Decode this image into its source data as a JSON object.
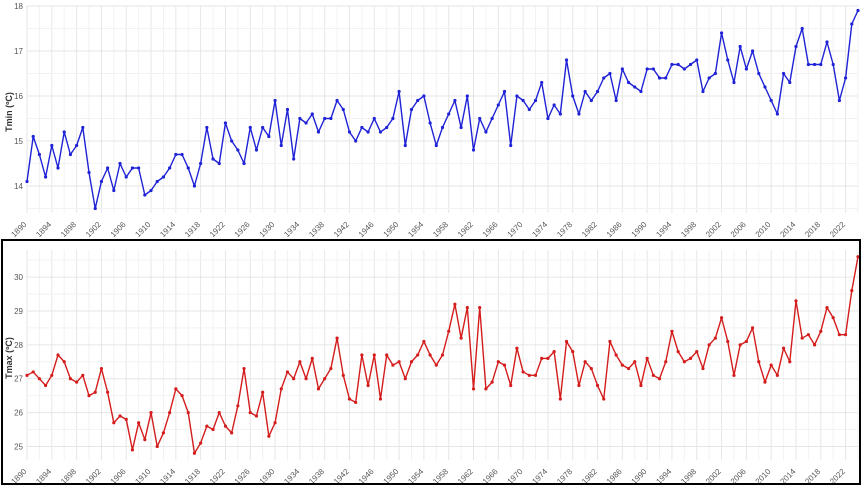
{
  "chart_data": [
    {
      "type": "line",
      "title": "",
      "xlabel": "",
      "ylabel": "Tmin (ºC)",
      "ylim": [
        13.4,
        18.0
      ],
      "xlim": [
        1890,
        2024
      ],
      "grid": true,
      "color": "#1f22d6",
      "x_ticks": [
        1890,
        1894,
        1898,
        1902,
        1906,
        1910,
        1914,
        1918,
        1922,
        1926,
        1930,
        1934,
        1938,
        1942,
        1946,
        1950,
        1954,
        1958,
        1962,
        1966,
        1970,
        1974,
        1978,
        1982,
        1986,
        1990,
        1994,
        1998,
        2002,
        2006,
        2010,
        2014,
        2018,
        2022
      ],
      "y_ticks": [
        14,
        15,
        16,
        17,
        18
      ],
      "series": [
        {
          "x_start": 1890,
          "x_step": 1,
          "values": [
            14.1,
            15.1,
            14.7,
            14.2,
            14.9,
            14.4,
            15.2,
            14.7,
            14.9,
            15.3,
            14.3,
            13.5,
            14.1,
            14.4,
            13.9,
            14.5,
            14.2,
            14.4,
            14.4,
            13.8,
            13.9,
            14.1,
            14.2,
            14.4,
            14.7,
            14.7,
            14.4,
            14.0,
            14.5,
            15.3,
            14.6,
            14.5,
            15.4,
            15.0,
            14.8,
            14.5,
            15.3,
            14.8,
            15.3,
            15.1,
            15.9,
            14.9,
            15.7,
            14.6,
            15.5,
            15.4,
            15.6,
            15.2,
            15.5,
            15.5,
            15.9,
            15.7,
            15.2,
            15.0,
            15.3,
            15.2,
            15.5,
            15.2,
            15.3,
            15.5,
            16.1,
            14.9,
            15.7,
            15.9,
            16.0,
            15.4,
            14.9,
            15.3,
            15.6,
            15.9,
            15.3,
            16.0,
            14.8,
            15.5,
            15.2,
            15.5,
            15.8,
            16.1,
            14.9,
            16.0,
            15.9,
            15.7,
            15.9,
            16.3,
            15.5,
            15.8,
            15.6,
            16.8,
            16.0,
            15.6,
            16.1,
            15.9,
            16.1,
            16.4,
            16.5,
            15.9,
            16.6,
            16.3,
            16.2,
            16.1,
            16.6,
            16.6,
            16.4,
            16.4,
            16.7,
            16.7,
            16.6,
            16.7,
            16.8,
            16.1,
            16.4,
            16.5,
            17.4,
            16.8,
            16.3,
            17.1,
            16.6,
            17.0,
            16.5,
            16.2,
            15.9,
            15.6,
            16.5,
            16.3,
            17.1,
            17.5,
            16.7,
            16.7,
            16.7,
            17.2,
            16.7,
            15.9,
            16.4,
            17.6,
            17.9
          ]
        }
      ]
    },
    {
      "type": "line",
      "title": "",
      "xlabel": "",
      "ylabel": "Tmax (ºC)",
      "ylim": [
        24.6,
        30.8
      ],
      "xlim": [
        1890,
        2024
      ],
      "grid": true,
      "color": "#d41c1c",
      "x_ticks": [
        1890,
        1894,
        1898,
        1902,
        1906,
        1910,
        1914,
        1918,
        1922,
        1926,
        1930,
        1934,
        1938,
        1942,
        1946,
        1950,
        1954,
        1958,
        1962,
        1966,
        1970,
        1974,
        1978,
        1982,
        1986,
        1990,
        1994,
        1998,
        2002,
        2006,
        2010,
        2014,
        2018,
        2022
      ],
      "y_ticks": [
        25,
        26,
        27,
        28,
        29,
        30
      ],
      "series": [
        {
          "x_start": 1890,
          "x_step": 1,
          "values": [
            27.1,
            27.2,
            27.0,
            26.8,
            27.1,
            27.7,
            27.5,
            27.0,
            26.9,
            27.1,
            26.5,
            26.6,
            27.3,
            26.6,
            25.7,
            25.9,
            25.8,
            24.9,
            25.7,
            25.2,
            26.0,
            25.0,
            25.4,
            26.0,
            26.7,
            26.5,
            26.0,
            24.8,
            25.1,
            25.6,
            25.5,
            26.0,
            25.6,
            25.4,
            26.2,
            27.3,
            26.0,
            25.9,
            26.6,
            25.3,
            25.7,
            26.7,
            27.2,
            27.0,
            27.5,
            27.0,
            27.6,
            26.7,
            27.0,
            27.3,
            28.2,
            27.1,
            26.4,
            26.3,
            27.7,
            26.8,
            27.7,
            26.4,
            27.7,
            27.4,
            27.5,
            27.0,
            27.5,
            27.7,
            28.1,
            27.7,
            27.4,
            27.7,
            28.4,
            29.2,
            28.2,
            29.1,
            26.7,
            29.1,
            26.7,
            26.9,
            27.5,
            27.4,
            26.8,
            27.9,
            27.2,
            27.1,
            27.1,
            27.6,
            27.6,
            27.8,
            26.4,
            28.1,
            27.8,
            26.8,
            27.5,
            27.3,
            26.8,
            26.4,
            28.1,
            27.7,
            27.4,
            27.3,
            27.5,
            26.8,
            27.6,
            27.1,
            27.0,
            27.5,
            28.4,
            27.8,
            27.5,
            27.6,
            27.8,
            27.3,
            28.0,
            28.2,
            28.8,
            28.1,
            27.1,
            28.0,
            28.1,
            28.5,
            27.5,
            26.9,
            27.4,
            27.1,
            27.9,
            27.5,
            29.3,
            28.2,
            28.3,
            28.0,
            28.4,
            29.1,
            28.8,
            28.3,
            28.3,
            29.6,
            30.6
          ]
        }
      ]
    }
  ]
}
